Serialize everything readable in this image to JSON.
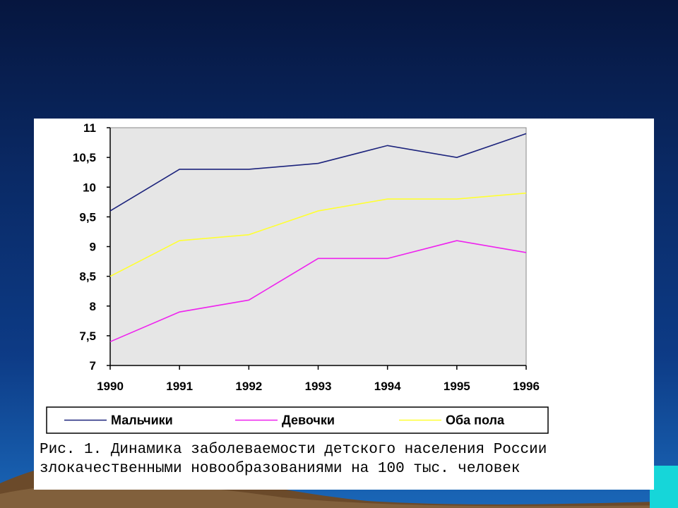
{
  "chart_data": {
    "type": "line",
    "x": [
      "1990",
      "1991",
      "1992",
      "1993",
      "1994",
      "1995",
      "1996"
    ],
    "ylim": [
      7,
      11
    ],
    "yticks": [
      "7",
      "7,5",
      "8",
      "8,5",
      "9",
      "9,5",
      "10",
      "10,5",
      "11"
    ],
    "ytick_values": [
      7,
      7.5,
      8,
      8.5,
      9,
      9.5,
      10,
      10.5,
      11
    ],
    "grid": false,
    "legend_position": "bottom",
    "plot_background": "#e6e6e6",
    "series": [
      {
        "name": "Мальчики",
        "color": "#1c237c",
        "values": [
          9.6,
          10.3,
          10.3,
          10.4,
          10.7,
          10.5,
          10.9
        ]
      },
      {
        "name": "Девочки",
        "color": "#ee22ee",
        "values": [
          7.4,
          7.9,
          8.1,
          8.8,
          8.8,
          9.1,
          8.9
        ]
      },
      {
        "name": "Оба пола",
        "color": "#ffff33",
        "values": [
          8.5,
          9.1,
          9.2,
          9.6,
          9.8,
          9.8,
          9.9
        ]
      }
    ]
  },
  "caption": {
    "line1": "Рис. 1. Динамика заболеваемости детского населения России",
    "line2": "злокачественными новообразованиями на 100 тыс. человек"
  },
  "colors": {
    "background_top": "#06163f",
    "background_bottom": "#1a67b8",
    "panel": "#ffffff"
  }
}
